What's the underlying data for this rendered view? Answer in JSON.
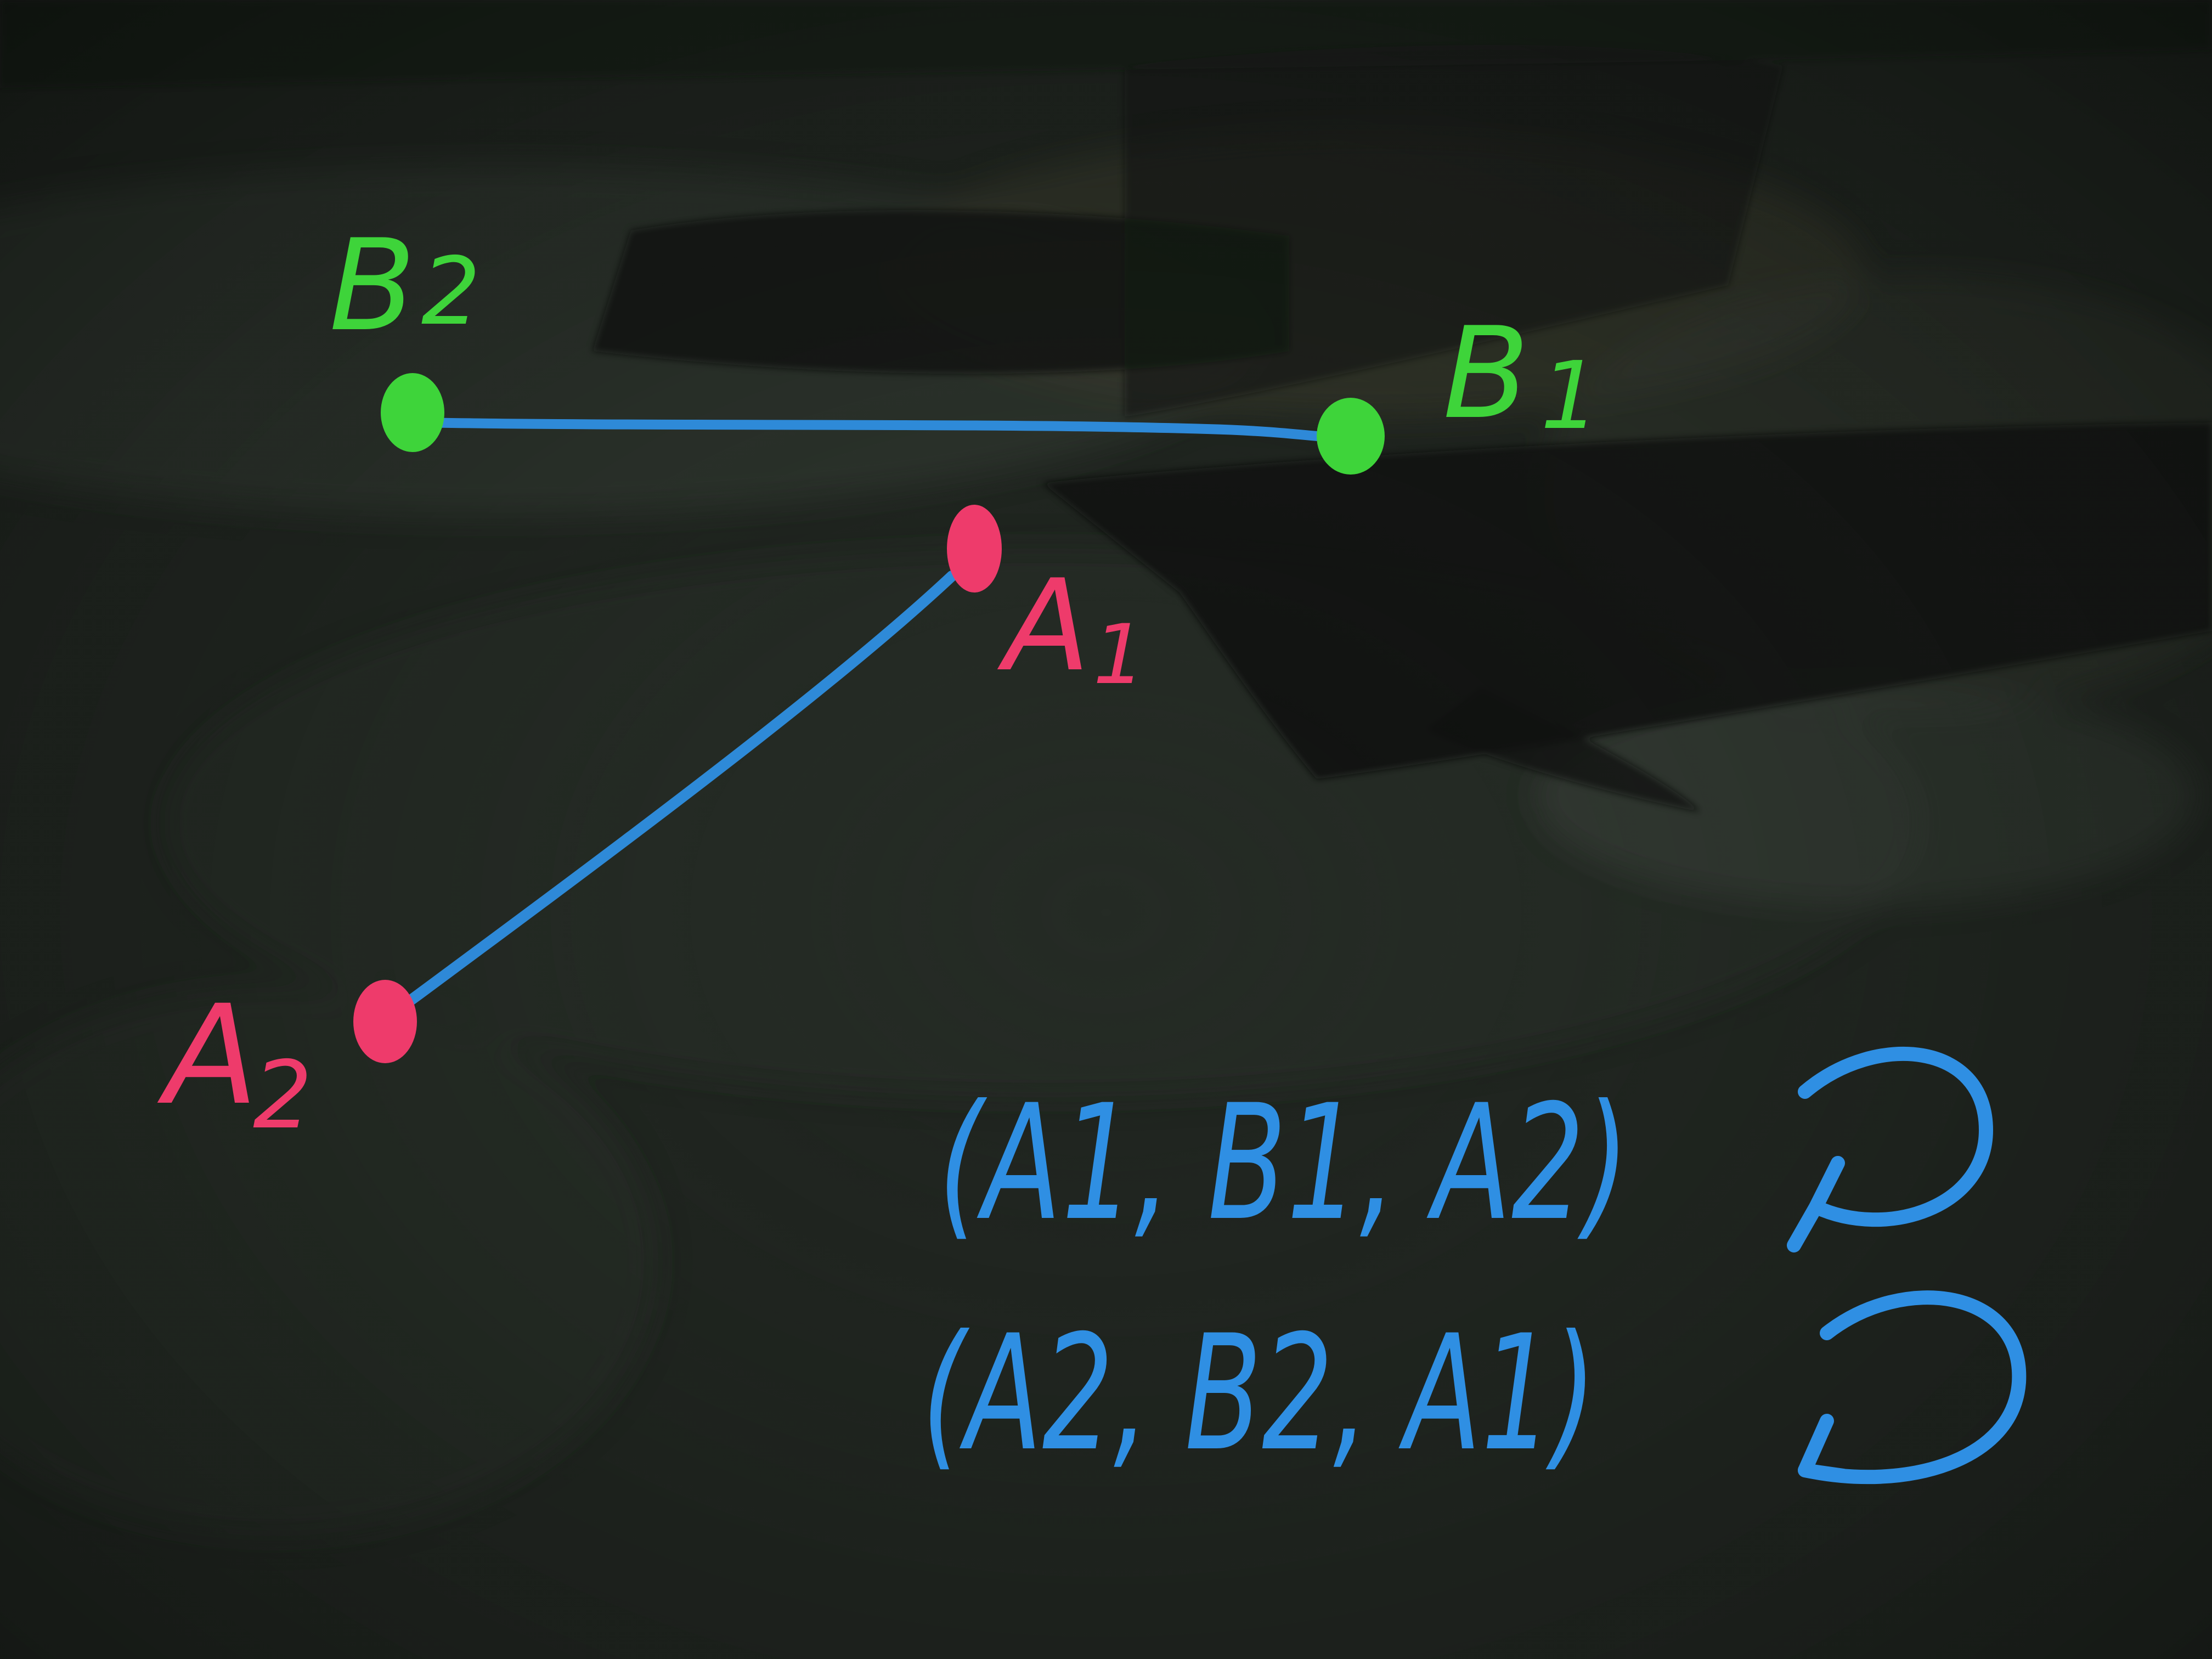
{
  "points": {
    "A1": {
      "label": "A",
      "subscript": "1",
      "color": "#ee3b6b"
    },
    "A2": {
      "label": "A",
      "subscript": "2",
      "color": "#ee3b6b"
    },
    "B1": {
      "label": "B",
      "subscript": "1",
      "color": "#3ed43a"
    },
    "B2": {
      "label": "B",
      "subscript": "2",
      "color": "#3ed43a"
    }
  },
  "segment_color": "#2f8fe3",
  "equations": [
    {
      "text": "(A1, B1, A2)",
      "rotation_icon": "clockwise-arrow-icon"
    },
    {
      "text": "(A2, B2, A1)",
      "rotation_icon": "counterclockwise-arrow-icon"
    }
  ],
  "colors": {
    "board": "#1f231f",
    "ink_blue": "#2f8fe3",
    "ink_pink": "#ee3b6b",
    "ink_green": "#3ed43a"
  }
}
